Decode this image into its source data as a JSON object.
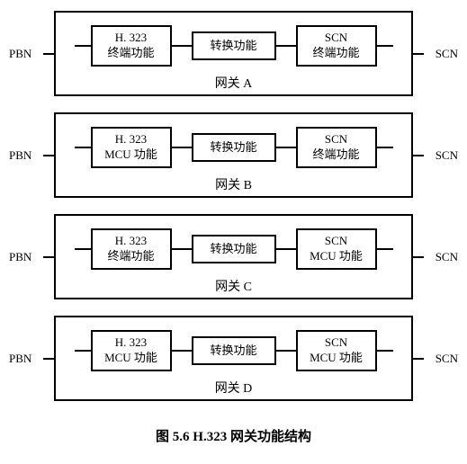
{
  "diagram": {
    "left_label": "PBN",
    "right_label": "SCN",
    "colors": {
      "background": "#ffffff",
      "border": "#000000",
      "text": "#000000",
      "line": "#000000"
    },
    "border_width": 2,
    "font_size_box": 13,
    "font_size_label": 14,
    "font_size_caption": 15,
    "gateways": [
      {
        "id": "A",
        "label": "网关 A",
        "box1_line1": "H. 323",
        "box1_line2": "终端功能",
        "box2": "转换功能",
        "box3_line1": "SCN",
        "box3_line2": "终端功能"
      },
      {
        "id": "B",
        "label": "网关 B",
        "box1_line1": "H. 323",
        "box1_line2": "MCU 功能",
        "box2": "转换功能",
        "box3_line1": "SCN",
        "box3_line2": "终端功能"
      },
      {
        "id": "C",
        "label": "网关 C",
        "box1_line1": "H. 323",
        "box1_line2": "终端功能",
        "box2": "转换功能",
        "box3_line1": "SCN",
        "box3_line2": "MCU 功能"
      },
      {
        "id": "D",
        "label": "网关 D",
        "box1_line1": "H. 323",
        "box1_line2": "MCU 功能",
        "box2": "转换功能",
        "box3_line1": "SCN",
        "box3_line2": "MCU 功能"
      }
    ],
    "caption": "图 5.6  H.323 网关功能结构"
  }
}
